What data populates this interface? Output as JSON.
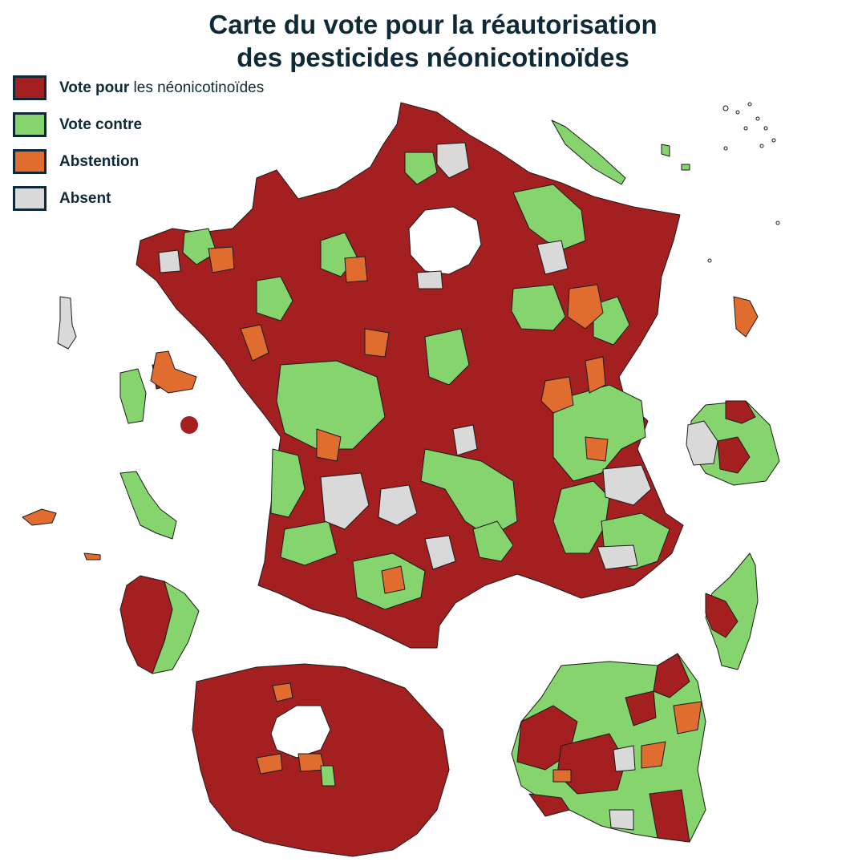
{
  "title": {
    "line1": "Carte du vote pour la réautorisation",
    "line2": "des pesticides néonicotinoïdes"
  },
  "legend": [
    {
      "key": "pour",
      "label_bold": "Vote pour",
      "label_rest": " les néonicotinoïdes",
      "color": "#a31f20"
    },
    {
      "key": "contre",
      "label_bold": "Vote contre",
      "label_rest": "",
      "color": "#86d46d"
    },
    {
      "key": "abstention",
      "label_bold": "Abstention",
      "label_rest": "",
      "color": "#e06d2f"
    },
    {
      "key": "absent",
      "label_bold": "Absent",
      "label_rest": "",
      "color": "#d9d9d9"
    }
  ],
  "colors": {
    "pour": "#a31f20",
    "contre": "#86d46d",
    "abstention": "#e06d2f",
    "absent": "#d9d9d9",
    "outline": "#1a1a1a",
    "text": "#0f2a36"
  }
}
